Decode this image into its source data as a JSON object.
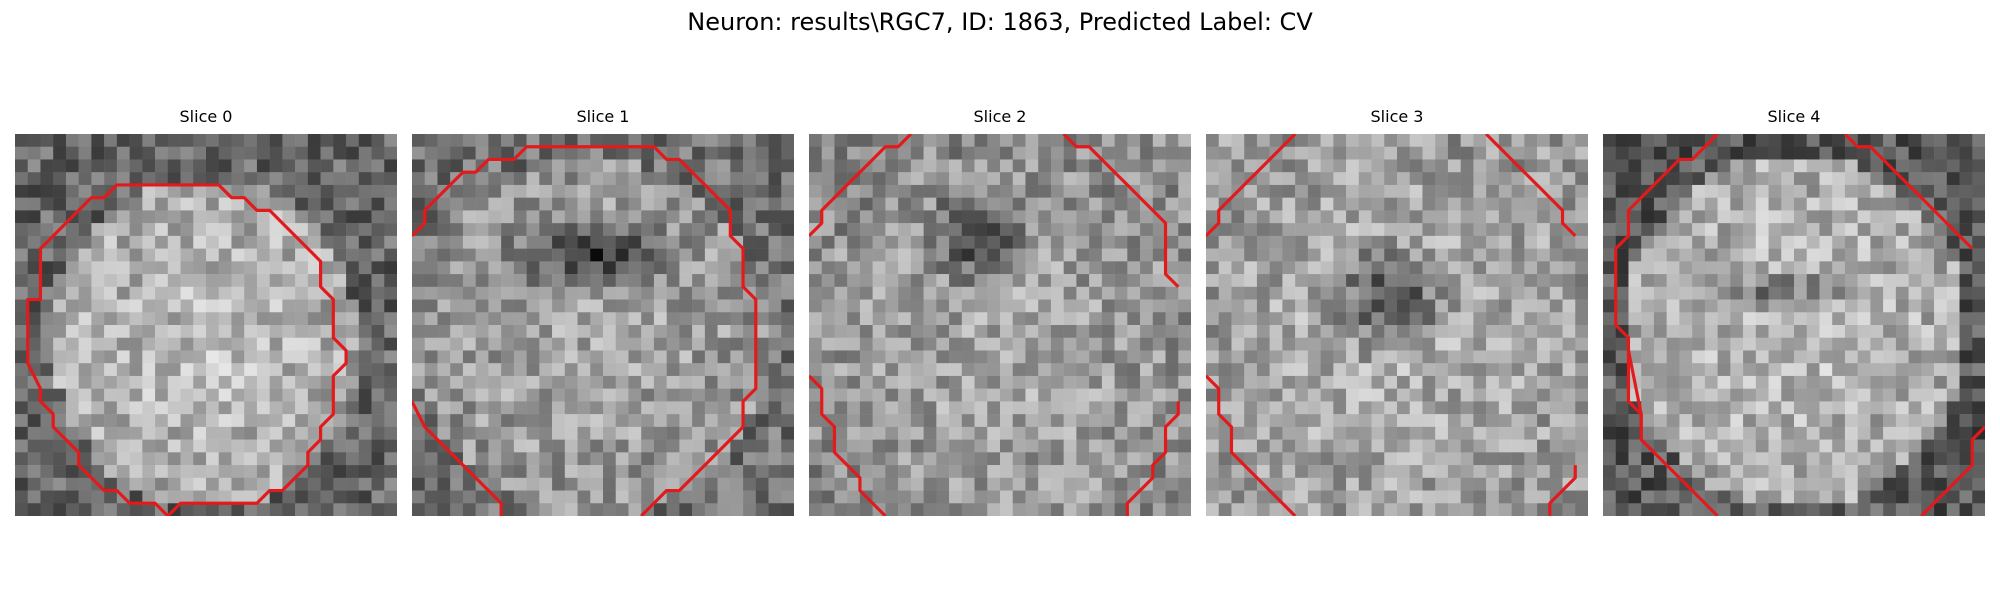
{
  "figure": {
    "title": "Neuron: results\\RGC7, ID: 1863, Predicted Label: CV",
    "contour_color": "#e31a1c"
  },
  "panels": [
    {
      "title": "Slice 0",
      "image": "grayscale-neuron-slice-0",
      "contour_style": "closed"
    },
    {
      "title": "Slice 1",
      "image": "grayscale-neuron-slice-1",
      "contour_style": "closed"
    },
    {
      "title": "Slice 2",
      "image": "grayscale-neuron-slice-2",
      "contour_style": "corners"
    },
    {
      "title": "Slice 3",
      "image": "grayscale-neuron-slice-3",
      "contour_style": "corners"
    },
    {
      "title": "Slice 4",
      "image": "grayscale-neuron-slice-4",
      "contour_style": "open"
    }
  ]
}
